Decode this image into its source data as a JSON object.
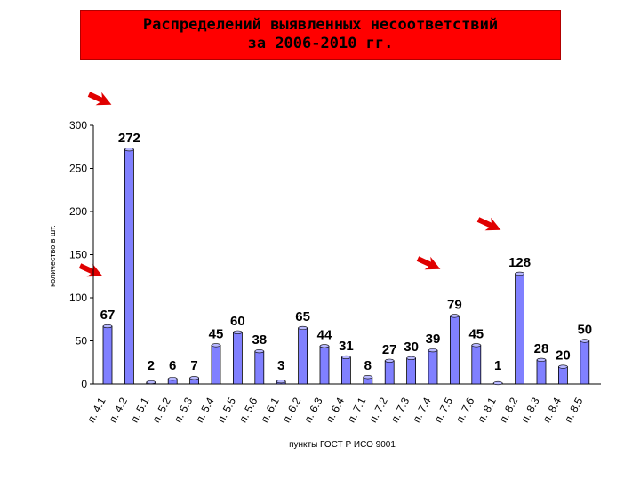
{
  "title_line1": "Распределений выявленных несоответствий",
  "title_line2": "за 2006-2010 гг.",
  "colors": {
    "title_bg": "#ff0000",
    "bar": "#8080ff",
    "bar_outline": "#000000",
    "arrow": "#e00000"
  },
  "chart_data": {
    "type": "bar",
    "title": "Распределений выявленных несоответствий за 2006-2010 гг.",
    "ylabel": "количество в шт.",
    "xlabel": "пункты ГОСТ Р ИСО 9001",
    "ylim": [
      0,
      300
    ],
    "yticks": [
      0,
      50,
      100,
      150,
      200,
      250,
      300
    ],
    "grid": false,
    "categories": [
      "п. 4.1",
      "п. 4.2",
      "п. 5.1",
      "п. 5.2",
      "п. 5.3",
      "п. 5.4",
      "п. 5.5",
      "п. 5.6",
      "п. 6.1",
      "п. 6.2",
      "п. 6.3",
      "п. 6.4",
      "п. 7.1",
      "п. 7.2",
      "п. 7.3",
      "п. 7.4",
      "п. 7.5",
      "п. 7.6",
      "п. 8.1",
      "п. 8.2",
      "п. 8.3",
      "п. 8.4",
      "п. 8.5"
    ],
    "values": [
      67,
      272,
      2,
      6,
      7,
      45,
      60,
      38,
      3,
      65,
      44,
      31,
      8,
      27,
      30,
      39,
      79,
      45,
      1,
      128,
      28,
      20,
      50
    ],
    "data_labels": [
      "67",
      "272",
      "2",
      "6",
      "7",
      "45",
      "60",
      "38",
      "3",
      "65",
      "44",
      "31",
      "8",
      "27",
      "30",
      "39",
      "79",
      "45",
      "1",
      "128",
      "28",
      "20",
      "50"
    ]
  }
}
